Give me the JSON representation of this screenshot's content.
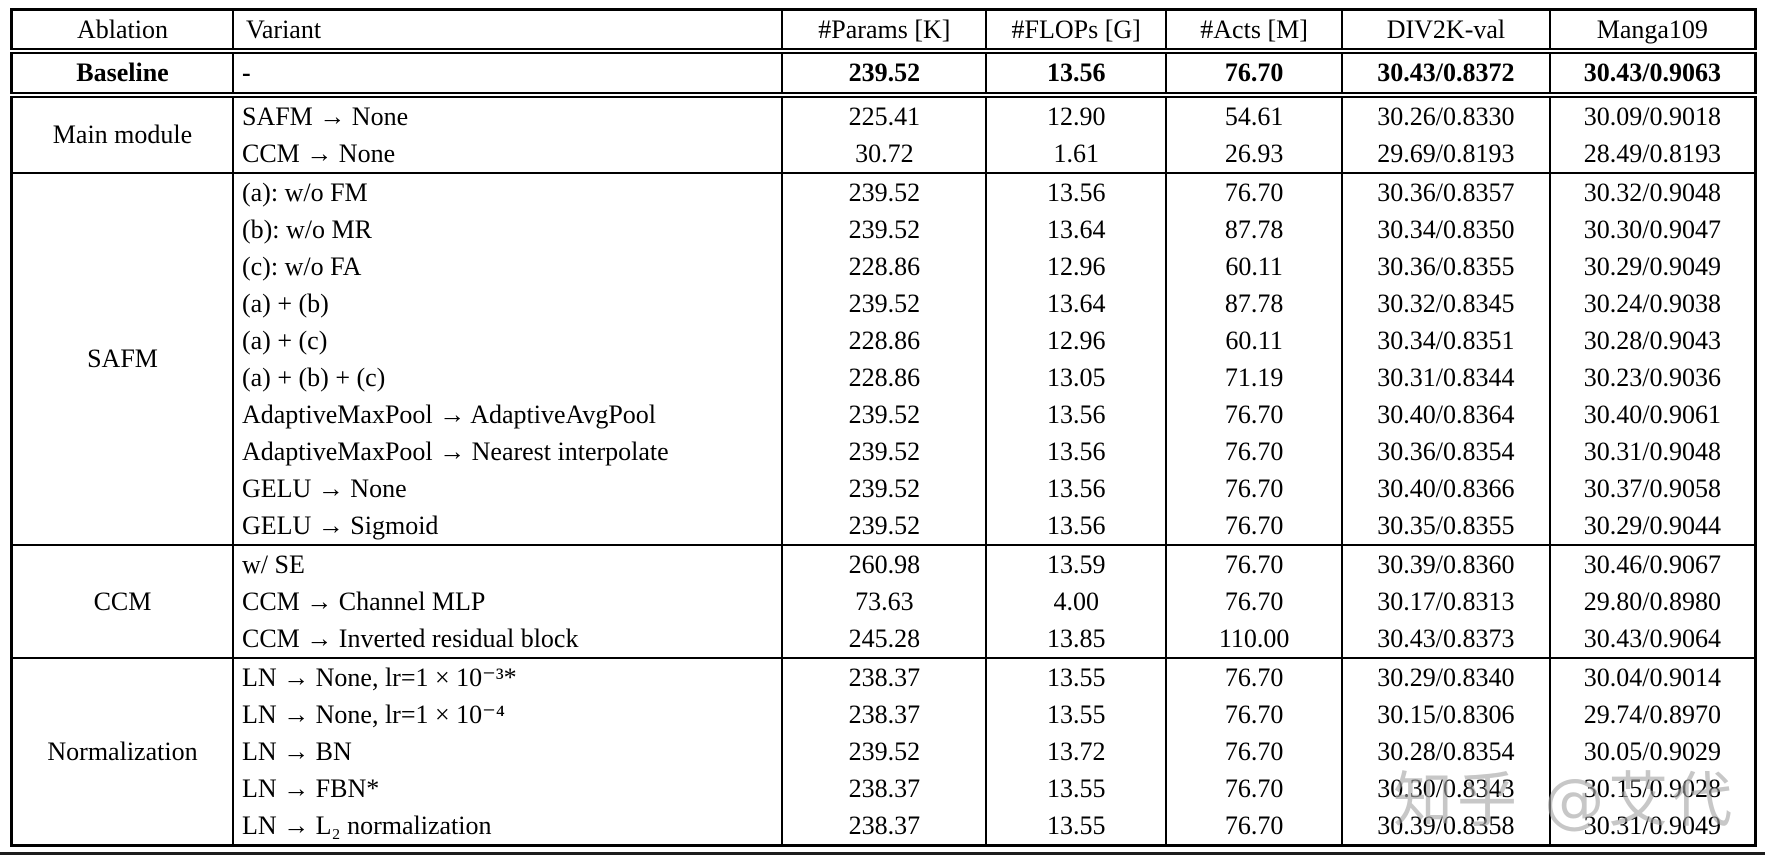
{
  "table": {
    "columns": [
      "Ablation",
      "Variant",
      "#Params [K]",
      "#FLOPs [G]",
      "#Acts [M]",
      "DIV2K-val",
      "Manga109"
    ],
    "baseline": {
      "ablation": "Baseline",
      "variant": "-",
      "values": [
        "239.52",
        "13.56",
        "76.70",
        "30.43/0.8372",
        "30.43/0.9063"
      ]
    },
    "sections": [
      {
        "ablation": "Main module",
        "rows": [
          {
            "variant": "SAFM → None",
            "values": [
              "225.41",
              "12.90",
              "54.61",
              "30.26/0.8330",
              "30.09/0.9018"
            ]
          },
          {
            "variant": "CCM → None",
            "values": [
              "30.72",
              "1.61",
              "26.93",
              "29.69/0.8193",
              "28.49/0.8193"
            ]
          }
        ]
      },
      {
        "ablation": "SAFM",
        "rows": [
          {
            "variant": "(a): w/o FM",
            "values": [
              "239.52",
              "13.56",
              "76.70",
              "30.36/0.8357",
              "30.32/0.9048"
            ]
          },
          {
            "variant": "(b): w/o MR",
            "values": [
              "239.52",
              "13.64",
              "87.78",
              "30.34/0.8350",
              "30.30/0.9047"
            ]
          },
          {
            "variant": "(c): w/o FA",
            "values": [
              "228.86",
              "12.96",
              "60.11",
              "30.36/0.8355",
              "30.29/0.9049"
            ]
          },
          {
            "variant": "(a) + (b)",
            "values": [
              "239.52",
              "13.64",
              "87.78",
              "30.32/0.8345",
              "30.24/0.9038"
            ]
          },
          {
            "variant": "(a) + (c)",
            "values": [
              "228.86",
              "12.96",
              "60.11",
              "30.34/0.8351",
              "30.28/0.9043"
            ]
          },
          {
            "variant": "(a) + (b) + (c)",
            "values": [
              "228.86",
              "13.05",
              "71.19",
              "30.31/0.8344",
              "30.23/0.9036"
            ]
          },
          {
            "variant": "AdaptiveMaxPool → AdaptiveAvgPool",
            "values": [
              "239.52",
              "13.56",
              "76.70",
              "30.40/0.8364",
              "30.40/0.9061"
            ]
          },
          {
            "variant": "AdaptiveMaxPool → Nearest interpolate",
            "values": [
              "239.52",
              "13.56",
              "76.70",
              "30.36/0.8354",
              "30.31/0.9048"
            ]
          },
          {
            "variant": "GELU → None",
            "values": [
              "239.52",
              "13.56",
              "76.70",
              "30.40/0.8366",
              "30.37/0.9058"
            ]
          },
          {
            "variant": "GELU → Sigmoid",
            "values": [
              "239.52",
              "13.56",
              "76.70",
              "30.35/0.8355",
              "30.29/0.9044"
            ]
          }
        ]
      },
      {
        "ablation": "CCM",
        "rows": [
          {
            "variant": "w/ SE",
            "values": [
              "260.98",
              "13.59",
              "76.70",
              "30.39/0.8360",
              "30.46/0.9067"
            ]
          },
          {
            "variant": "CCM → Channel MLP",
            "values": [
              "73.63",
              "4.00",
              "76.70",
              "30.17/0.8313",
              "29.80/0.8980"
            ]
          },
          {
            "variant": "CCM → Inverted residual block",
            "values": [
              "245.28",
              "13.85",
              "110.00",
              "30.43/0.8373",
              "30.43/0.9064"
            ]
          }
        ]
      },
      {
        "ablation": "Normalization",
        "rows": [
          {
            "variant": "LN → None, lr=1 × 10⁻³*",
            "values": [
              "238.37",
              "13.55",
              "76.70",
              "30.29/0.8340",
              "30.04/0.9014"
            ]
          },
          {
            "variant": "LN → None, lr=1 × 10⁻⁴",
            "values": [
              "238.37",
              "13.55",
              "76.70",
              "30.15/0.8306",
              "29.74/0.8970"
            ]
          },
          {
            "variant": "LN → BN",
            "values": [
              "239.52",
              "13.72",
              "76.70",
              "30.28/0.8354",
              "30.05/0.9029"
            ]
          },
          {
            "variant": "LN → FBN*",
            "values": [
              "238.37",
              "13.55",
              "76.70",
              "30.30/0.8343",
              "30.15/0.9028"
            ]
          },
          {
            "variant": "LN → L₂ normalization",
            "values": [
              "238.37",
              "13.55",
              "76.70",
              "30.39/0.8358",
              "30.31/0.9049"
            ]
          }
        ]
      }
    ]
  },
  "watermark": {
    "text": "知乎 @艾代"
  },
  "colors": {
    "border": "#000000",
    "background": "#ffffff",
    "watermark_gray": "#a5a5a5"
  }
}
